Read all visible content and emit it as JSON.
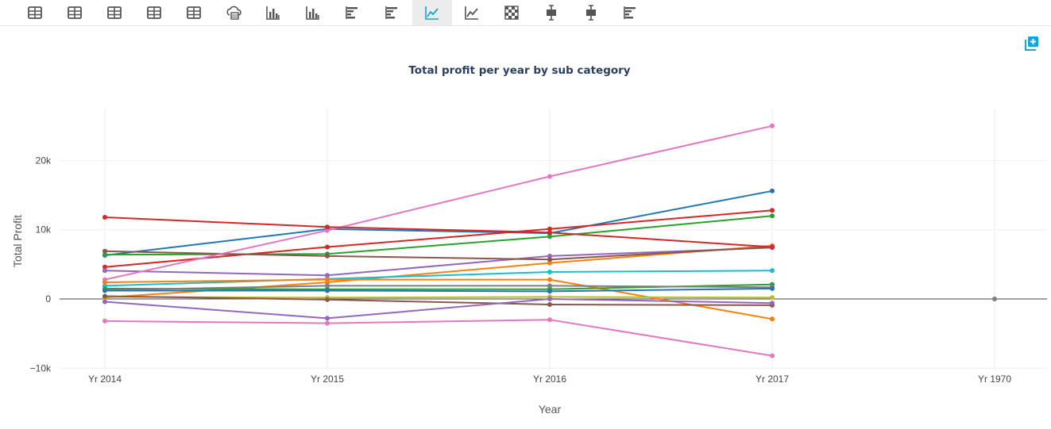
{
  "toolbar": {
    "items": [
      {
        "name": "table-view-1-button",
        "icon": "table-icon"
      },
      {
        "name": "table-view-2-button",
        "icon": "table-icon"
      },
      {
        "name": "table-view-3-button",
        "icon": "table-icon"
      },
      {
        "name": "table-view-4-button",
        "icon": "table-icon"
      },
      {
        "name": "table-view-5-button",
        "icon": "table-icon"
      },
      {
        "name": "cloud-table-button",
        "icon": "cloud-table-icon"
      },
      {
        "name": "bar-chart-1-button",
        "icon": "bar-chart-icon"
      },
      {
        "name": "bar-chart-2-button",
        "icon": "bar-chart-icon"
      },
      {
        "name": "hbar-chart-1-button",
        "icon": "horizontal-bar-icon"
      },
      {
        "name": "hbar-chart-2-button",
        "icon": "horizontal-bar-icon"
      },
      {
        "name": "line-chart-button",
        "icon": "line-chart-icon",
        "active": true
      },
      {
        "name": "area-line-button",
        "icon": "line-chart-icon"
      },
      {
        "name": "heatmap-button",
        "icon": "heatmap-icon"
      },
      {
        "name": "boxplot-1-button",
        "icon": "boxplot-icon"
      },
      {
        "name": "boxplot-2-button",
        "icon": "boxplot-icon"
      },
      {
        "name": "hbar-chart-3-button",
        "icon": "horizontal-bar-icon"
      }
    ],
    "accent_color": "#1aa3d6"
  },
  "add_button": {
    "icon": "add-copy-icon",
    "color": "#1aa3d6"
  },
  "chart_data": {
    "type": "line",
    "title": "Total profit per year by sub category",
    "xlabel": "Year",
    "ylabel": "Total Profit",
    "categories": [
      "Yr 2014",
      "Yr 2015",
      "Yr 2016",
      "Yr 2017",
      "Yr 1970"
    ],
    "yticks": [
      -10000,
      0,
      10000,
      20000
    ],
    "ytick_labels": [
      "−10k",
      "0",
      "10k",
      "20k"
    ],
    "ylim": [
      -10000,
      27000
    ],
    "grid": true,
    "zeroline": true,
    "series": [
      {
        "color": "#1f77b4",
        "values": [
          6300,
          10100,
          9500,
          15600,
          null
        ]
      },
      {
        "color": "#ff7f0e",
        "values": [
          200,
          2400,
          5200,
          7700,
          null
        ]
      },
      {
        "color": "#2ca02c",
        "values": [
          6400,
          6500,
          9000,
          12000,
          null
        ]
      },
      {
        "color": "#d62728",
        "values": [
          4600,
          7500,
          10100,
          12800,
          null
        ]
      },
      {
        "color": "#9467bd",
        "values": [
          4100,
          3400,
          6200,
          7400,
          null
        ]
      },
      {
        "color": "#8c564b",
        "values": [
          6900,
          6200,
          5700,
          7500,
          null
        ]
      },
      {
        "color": "#e377c2",
        "values": [
          2800,
          9900,
          17700,
          25000,
          null
        ]
      },
      {
        "color": "#d62728",
        "values": [
          11800,
          10400,
          9600,
          7500,
          null
        ]
      },
      {
        "color": "#17becf",
        "values": [
          1900,
          2900,
          3900,
          4100,
          null
        ]
      },
      {
        "color": "#ff7f0e",
        "values": [
          2400,
          2800,
          2800,
          -2900,
          null
        ]
      },
      {
        "color": "#2ca02c",
        "values": [
          1500,
          1400,
          1400,
          2100,
          null
        ]
      },
      {
        "color": "#7f7f7f",
        "values": [
          1300,
          1900,
          1900,
          1700,
          null
        ]
      },
      {
        "color": "#1f77b4",
        "values": [
          1200,
          1200,
          1100,
          1500,
          null
        ]
      },
      {
        "color": "#bcbd22",
        "values": [
          300,
          200,
          300,
          200,
          null
        ]
      },
      {
        "color": "#8c564b",
        "values": [
          400,
          -100,
          -800,
          -900,
          null
        ]
      },
      {
        "color": "#9467bd",
        "values": [
          -400,
          -2800,
          0,
          -600,
          null
        ]
      },
      {
        "color": "#e377c2",
        "values": [
          -3200,
          -3500,
          -3000,
          -8200,
          null
        ]
      },
      {
        "color": "#7f7f7f",
        "values": [
          null,
          null,
          null,
          null,
          0
        ]
      }
    ]
  }
}
